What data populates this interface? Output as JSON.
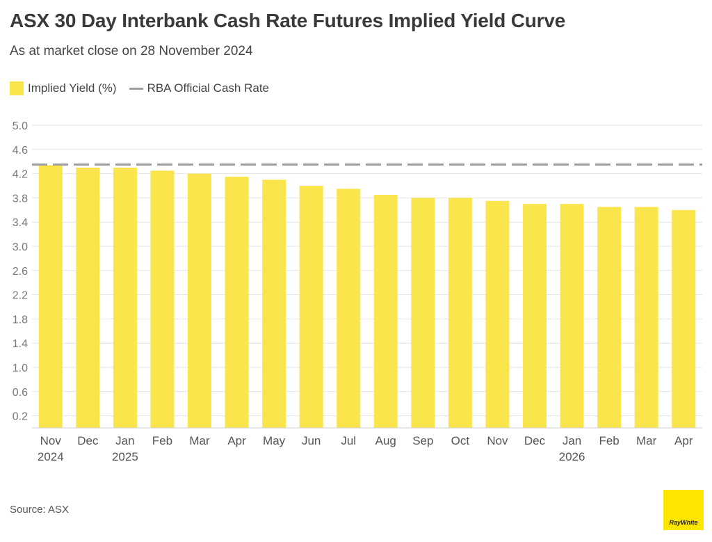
{
  "header": {
    "title": "ASX 30 Day Interbank Cash Rate Futures Implied Yield Curve",
    "subtitle": "As at market close on 28 November 2024"
  },
  "legend": {
    "bar_label": "Implied Yield (%)",
    "line_label": "RBA Official Cash Rate"
  },
  "footer": {
    "source": "Source: ASX",
    "logo_text": "RayWhite"
  },
  "colors": {
    "bar": "#FAE54D",
    "reference_line": "#9E9E9E",
    "grid": "#E3E3E3",
    "logo_bg": "#FFE600"
  },
  "chart_data": {
    "type": "bar",
    "title": "ASX 30 Day Interbank Cash Rate Futures Implied Yield Curve",
    "subtitle": "As at market close on 28 November 2024",
    "categories": [
      "Nov 2024",
      "Dec",
      "Jan 2025",
      "Feb",
      "Mar",
      "Apr",
      "May",
      "Jun",
      "Jul",
      "Aug",
      "Sep",
      "Oct",
      "Nov",
      "Dec",
      "Jan 2026",
      "Feb",
      "Mar",
      "Apr"
    ],
    "x_tick_labels": [
      [
        "Nov",
        "2024"
      ],
      [
        "Dec"
      ],
      [
        "Jan",
        "2025"
      ],
      [
        "Feb"
      ],
      [
        "Mar"
      ],
      [
        "Apr"
      ],
      [
        "May"
      ],
      [
        "Jun"
      ],
      [
        "Jul"
      ],
      [
        "Aug"
      ],
      [
        "Sep"
      ],
      [
        "Oct"
      ],
      [
        "Nov"
      ],
      [
        "Dec"
      ],
      [
        "Jan",
        "2026"
      ],
      [
        "Feb"
      ],
      [
        "Mar"
      ],
      [
        "Apr"
      ]
    ],
    "series": [
      {
        "name": "Implied Yield (%)",
        "type": "bar",
        "values": [
          4.34,
          4.3,
          4.3,
          4.25,
          4.2,
          4.15,
          4.1,
          4.0,
          3.95,
          3.85,
          3.8,
          3.8,
          3.75,
          3.7,
          3.7,
          3.65,
          3.65,
          3.6
        ]
      }
    ],
    "reference_lines": [
      {
        "name": "RBA Official Cash Rate",
        "value": 4.35,
        "style": "dashed"
      }
    ],
    "y_ticks": [
      0.2,
      0.6,
      1.0,
      1.4,
      1.8,
      2.2,
      2.6,
      3.0,
      3.4,
      3.8,
      4.2,
      4.6,
      5.0
    ],
    "y_tick_labels": [
      "0.2",
      "0.6",
      "1.0",
      "1.4",
      "1.8",
      "2.2",
      "2.6",
      "3.0",
      "3.4",
      "3.8",
      "4.2",
      "4.6",
      "5.0"
    ],
    "ylim": [
      0.0,
      5.0
    ],
    "xlabel": "",
    "ylabel": "",
    "grid": true,
    "legend_position": "top-left"
  }
}
